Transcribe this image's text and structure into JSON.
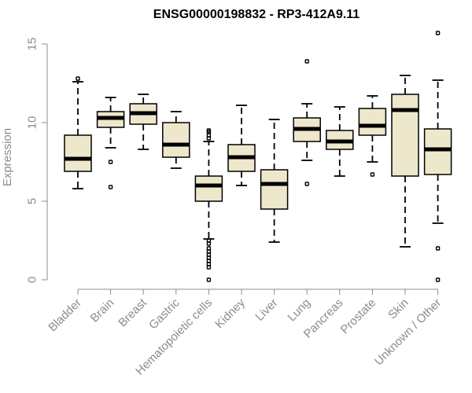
{
  "chart_data": {
    "type": "boxplot",
    "title": "ENSG00000198832 - RP3-412A9.11",
    "xlabel": "",
    "ylabel": "Expression",
    "ylim": [
      0,
      15.5
    ],
    "yticks": [
      0,
      5,
      10,
      15
    ],
    "grid": false,
    "box_color": "#ede7cc",
    "line_color": "#000000",
    "axis_color": "#8c8c8c",
    "categories": [
      "Bladder",
      "Brain",
      "Breast",
      "Gastric",
      "Hematopoietic cells",
      "Kidney",
      "Liver",
      "Lung",
      "Pancreas",
      "Prostate",
      "Skin",
      "Unknown / Other"
    ],
    "boxes": [
      {
        "name": "Bladder",
        "whisker_low": 5.8,
        "q1": 6.9,
        "median": 7.7,
        "q3": 9.2,
        "whisker_high": 12.6,
        "outliers": [
          12.8
        ]
      },
      {
        "name": "Brain",
        "whisker_low": 8.4,
        "q1": 9.7,
        "median": 10.3,
        "q3": 10.7,
        "whisker_high": 11.6,
        "outliers": [
          7.5,
          5.9
        ]
      },
      {
        "name": "Breast",
        "whisker_low": 8.3,
        "q1": 9.9,
        "median": 10.6,
        "q3": 11.2,
        "whisker_high": 11.8,
        "outliers": []
      },
      {
        "name": "Gastric",
        "whisker_low": 7.1,
        "q1": 7.8,
        "median": 8.6,
        "q3": 10.0,
        "whisker_high": 10.7,
        "outliers": []
      },
      {
        "name": "Hematopoietic cells",
        "whisker_low": 2.6,
        "q1": 5.0,
        "median": 6.0,
        "q3": 6.6,
        "whisker_high": 8.8,
        "outliers": [
          9.0,
          9.2,
          9.4,
          9.5,
          2.5,
          2.3,
          2.0,
          1.8,
          1.6,
          1.4,
          1.2,
          1.0,
          0.8,
          0.0
        ]
      },
      {
        "name": "Kidney",
        "whisker_low": 6.0,
        "q1": 6.9,
        "median": 7.8,
        "q3": 8.6,
        "whisker_high": 11.1,
        "outliers": []
      },
      {
        "name": "Liver",
        "whisker_low": 2.4,
        "q1": 4.5,
        "median": 6.1,
        "q3": 7.0,
        "whisker_high": 10.2,
        "outliers": []
      },
      {
        "name": "Lung",
        "whisker_low": 7.6,
        "q1": 8.8,
        "median": 9.6,
        "q3": 10.3,
        "whisker_high": 11.2,
        "outliers": [
          13.9,
          6.1
        ]
      },
      {
        "name": "Pancreas",
        "whisker_low": 6.6,
        "q1": 8.3,
        "median": 8.8,
        "q3": 9.5,
        "whisker_high": 11.0,
        "outliers": []
      },
      {
        "name": "Prostate",
        "whisker_low": 7.5,
        "q1": 9.2,
        "median": 9.8,
        "q3": 10.9,
        "whisker_high": 11.7,
        "outliers": [
          6.7
        ]
      },
      {
        "name": "Skin",
        "whisker_low": 2.1,
        "q1": 6.6,
        "median": 10.8,
        "q3": 11.8,
        "whisker_high": 13.0,
        "outliers": []
      },
      {
        "name": "Unknown / Other",
        "whisker_low": 3.6,
        "q1": 6.7,
        "median": 8.3,
        "q3": 9.6,
        "whisker_high": 12.7,
        "outliers": [
          15.7,
          2.0,
          0.0
        ]
      }
    ]
  }
}
